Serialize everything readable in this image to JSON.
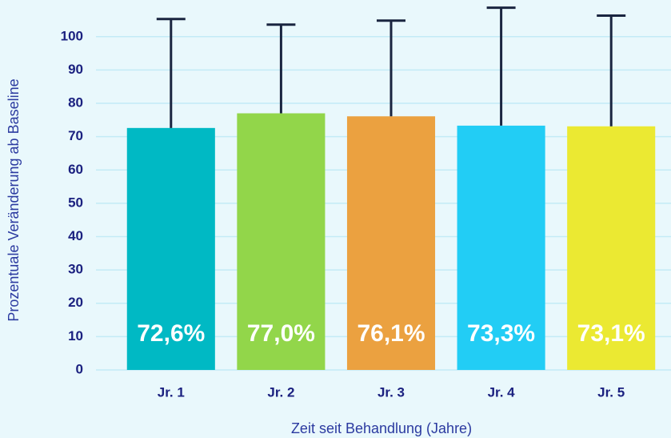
{
  "chart_data": {
    "type": "bar",
    "categories": [
      "Jr. 1",
      "Jr. 2",
      "Jr. 3",
      "Jr. 4",
      "Jr. 5"
    ],
    "values": [
      72.6,
      77.0,
      76.1,
      73.3,
      73.1
    ],
    "value_labels": [
      "72,6%",
      "77,0%",
      "76,1%",
      "73,3%",
      "73,1%"
    ],
    "errors": [
      32.7,
      26.6,
      28.7,
      35.4,
      33.2
    ],
    "colors": [
      "#00b9c4",
      "#92d64a",
      "#eba140",
      "#22cdf5",
      "#ebe932"
    ],
    "x_label": "Zeit seit Behandlung (Jahre)",
    "y_label": "Prozentuale Veränderung ab Baseline",
    "ylim": [
      0,
      111
    ],
    "yticks": [
      0,
      10,
      20,
      30,
      40,
      50,
      60,
      70,
      80,
      90,
      100
    ],
    "grid": true
  }
}
